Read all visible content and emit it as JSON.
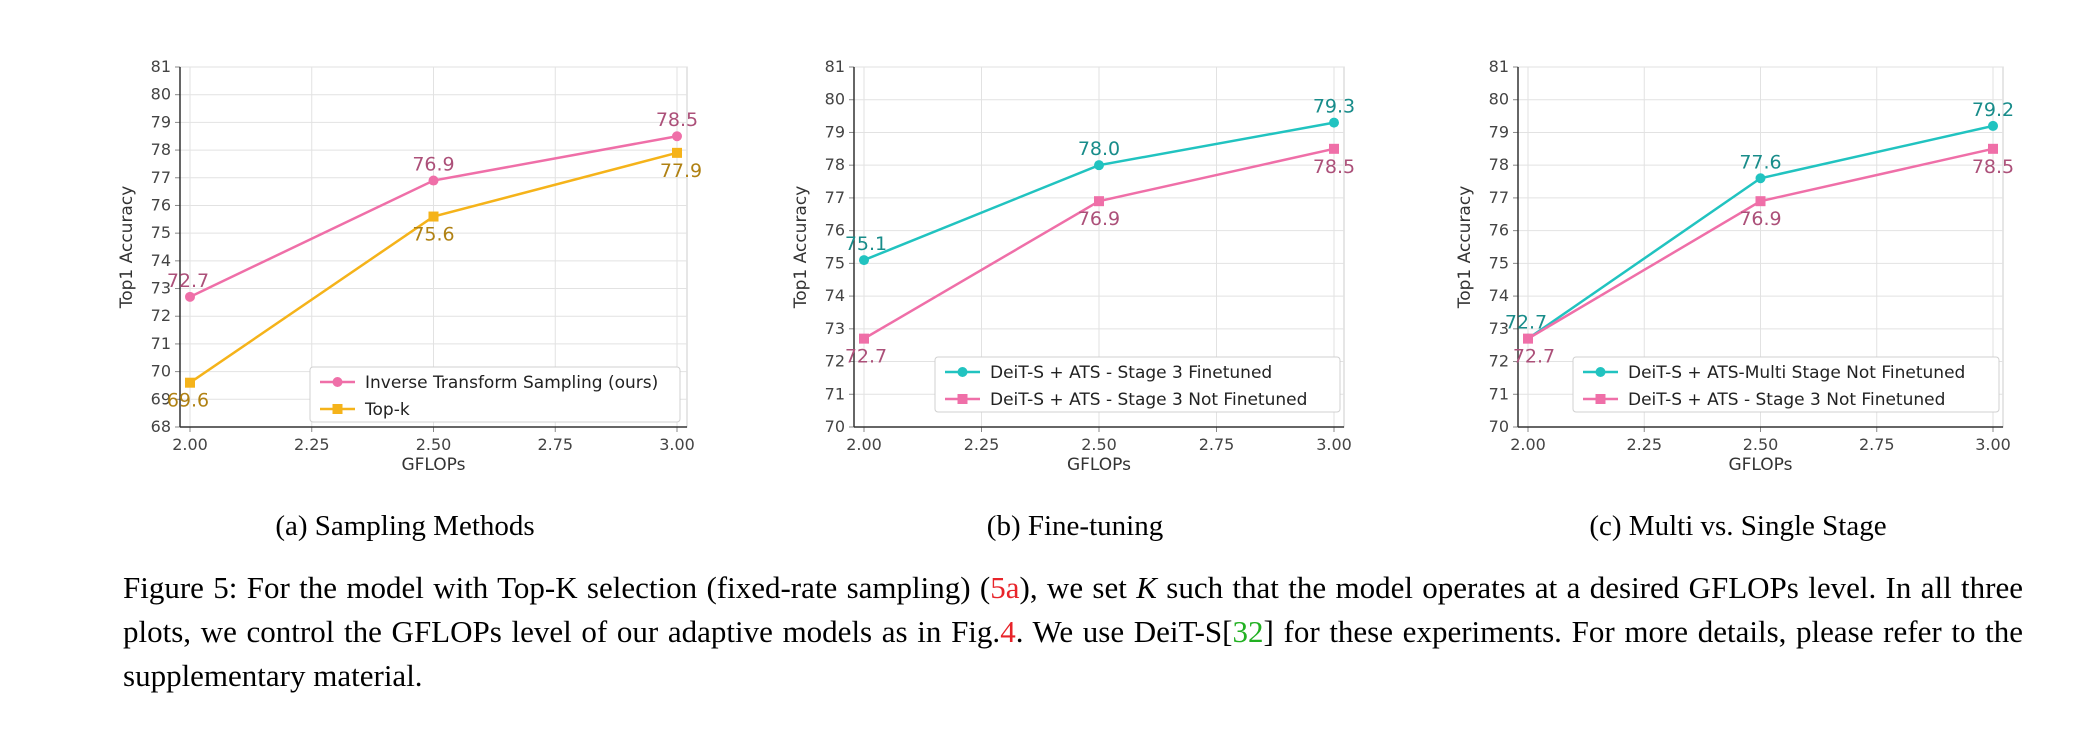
{
  "chart_data": [
    {
      "type": "line",
      "xlabel": "GFLOPs",
      "ylabel": "Top1 Accuracy",
      "xlim": [
        2.0,
        3.0
      ],
      "ylim": [
        68,
        81
      ],
      "xticks": [
        "2.00",
        "2.25",
        "2.50",
        "2.75",
        "3.00"
      ],
      "yticks": [
        "68",
        "69",
        "70",
        "71",
        "72",
        "73",
        "74",
        "75",
        "76",
        "77",
        "78",
        "79",
        "80",
        "81"
      ],
      "grid": true,
      "legend_position": "lower-right",
      "subcaption": "(a) Sampling Methods",
      "series": [
        {
          "name": "Inverse Transform Sampling (ours)",
          "color": "#ef6fa8",
          "marker": "circle",
          "x": [
            2.0,
            2.5,
            3.0
          ],
          "y": [
            72.7,
            76.9,
            78.5
          ],
          "labels": [
            "72.7",
            "76.9",
            "78.5"
          ]
        },
        {
          "name": "Top-k",
          "color": "#f5b31a",
          "marker": "square",
          "x": [
            2.0,
            2.5,
            3.0
          ],
          "y": [
            69.6,
            75.6,
            77.9
          ],
          "labels": [
            "69.6",
            "75.6",
            "77.9"
          ]
        }
      ]
    },
    {
      "type": "line",
      "xlabel": "GFLOPs",
      "ylabel": "Top1 Accuracy",
      "xlim": [
        2.0,
        3.0
      ],
      "ylim": [
        70,
        81
      ],
      "xticks": [
        "2.00",
        "2.25",
        "2.50",
        "2.75",
        "3.00"
      ],
      "yticks": [
        "70",
        "71",
        "72",
        "73",
        "74",
        "75",
        "76",
        "77",
        "78",
        "79",
        "80",
        "81"
      ],
      "grid": true,
      "legend_position": "lower-right",
      "subcaption": "(b) Fine-tuning",
      "series": [
        {
          "name": "DeiT-S + ATS - Stage 3 Finetuned",
          "color": "#21c3c0",
          "marker": "circle",
          "x": [
            2.0,
            2.5,
            3.0
          ],
          "y": [
            75.1,
            78.0,
            79.3
          ],
          "labels": [
            "75.1",
            "78.0",
            "79.3"
          ]
        },
        {
          "name": "DeiT-S + ATS - Stage 3 Not Finetuned",
          "color": "#ef6fa8",
          "marker": "square",
          "x": [
            2.0,
            2.5,
            3.0
          ],
          "y": [
            72.7,
            76.9,
            78.5
          ],
          "labels": [
            "72.7",
            "76.9",
            "78.5"
          ]
        }
      ]
    },
    {
      "type": "line",
      "xlabel": "GFLOPs",
      "ylabel": "Top1 Accuracy",
      "xlim": [
        2.0,
        3.0
      ],
      "ylim": [
        70,
        81
      ],
      "xticks": [
        "2.00",
        "2.25",
        "2.50",
        "2.75",
        "3.00"
      ],
      "yticks": [
        "70",
        "71",
        "72",
        "73",
        "74",
        "75",
        "76",
        "77",
        "78",
        "79",
        "80",
        "81"
      ],
      "grid": true,
      "legend_position": "lower-right",
      "subcaption": "(c) Multi vs. Single Stage",
      "series": [
        {
          "name": "DeiT-S + ATS-Multi Stage Not Finetuned",
          "color": "#21c3c0",
          "marker": "circle",
          "x": [
            2.0,
            2.5,
            3.0
          ],
          "y": [
            72.7,
            77.6,
            79.2
          ],
          "labels": [
            "72.7",
            "77.6",
            "79.2"
          ]
        },
        {
          "name": "DeiT-S + ATS - Stage 3 Not Finetuned",
          "color": "#ef6fa8",
          "marker": "square",
          "x": [
            2.0,
            2.5,
            3.0
          ],
          "y": [
            72.7,
            76.9,
            78.5
          ],
          "labels": [
            "72.7",
            "76.9",
            "78.5"
          ]
        }
      ]
    }
  ],
  "caption": {
    "p1": "Figure 5: For the model with Top-K selection (fixed-rate sampling) (",
    "ref1": "5a",
    "p2": "), we set ",
    "k": "K",
    "p3": " such that the model operates at a desired GFLOPs level.  In all three plots, we control the GFLOPs level of our adaptive models as in Fig.",
    "ref2": "4",
    "p4": ".  We use DeiT-S[",
    "ref3": "32",
    "p5": "] for these experiments. For more details, please refer to the supplementary material."
  }
}
